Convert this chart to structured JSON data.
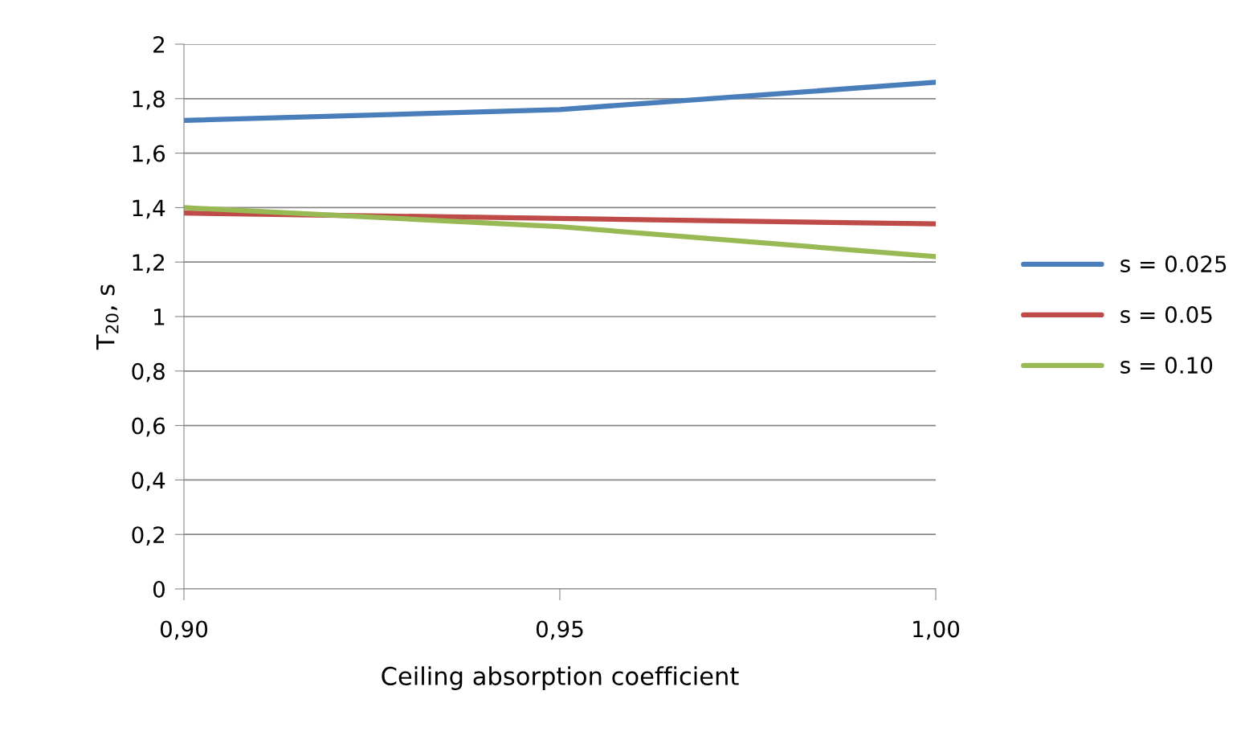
{
  "chart_data": {
    "type": "line",
    "xlabel": "Ceiling absorption coefficient",
    "ylabel": "T$_{20}$, s",
    "categories": [
      "0,90",
      "0,95",
      "1,00"
    ],
    "series": [
      {
        "name": "s = 0.025",
        "color": "#4a7ebb",
        "values": [
          1.72,
          1.76,
          1.86
        ]
      },
      {
        "name": "s = 0.05",
        "color": "#be4b48",
        "values": [
          1.38,
          1.36,
          1.34
        ]
      },
      {
        "name": "s = 0.10",
        "color": "#98b954",
        "values": [
          1.4,
          1.33,
          1.22
        ]
      }
    ],
    "ylim": [
      0,
      2
    ],
    "yticks": [
      0,
      {
        "value": 0.2,
        "label": "0,2"
      },
      {
        "value": 0.4,
        "label": "0,4"
      },
      {
        "value": 0.6,
        "label": "0,6"
      },
      {
        "value": 0.8,
        "label": "0,8"
      },
      1,
      {
        "value": 1.2,
        "label": "1,2"
      },
      {
        "value": 1.4,
        "label": "1,4"
      },
      {
        "value": 1.6,
        "label": "1,6"
      },
      {
        "value": 1.8,
        "label": "1,8"
      },
      2
    ],
    "grid": "y",
    "legend": "right",
    "marker": "none",
    "line_style": "solid"
  }
}
